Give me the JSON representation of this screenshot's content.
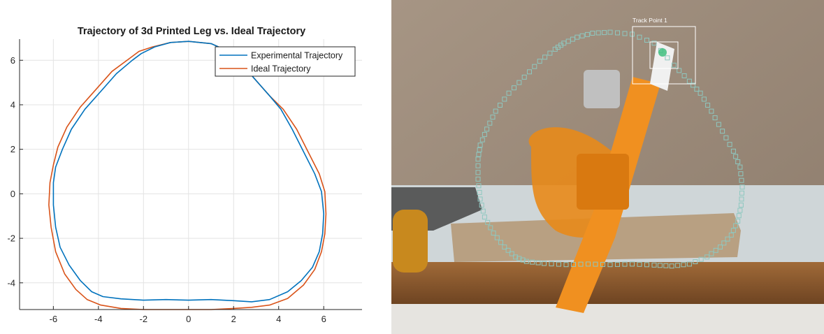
{
  "chart_data": {
    "type": "line",
    "title": "Trajectory of 3d Printed Leg vs. Ideal Trajectory",
    "xlabel": "",
    "ylabel": "",
    "xlim": [
      -7.5,
      7.7
    ],
    "ylim": [
      -5.2,
      6.95
    ],
    "xticks": [
      -6,
      -4,
      -2,
      0,
      2,
      4,
      6
    ],
    "yticks": [
      -4,
      -2,
      0,
      2,
      4,
      6
    ],
    "grid": true,
    "legend_position": "top-right",
    "series": [
      {
        "name": "Experimental Trajectory",
        "color": "#0072BD",
        "x": [
          0.0,
          1.0,
          2.0,
          2.9,
          3.6,
          4.1,
          4.6,
          5.1,
          5.6,
          5.9,
          6.0,
          5.95,
          5.8,
          5.5,
          5.0,
          4.4,
          3.6,
          2.8,
          2.0,
          1.0,
          0.0,
          -1.0,
          -2.0,
          -3.0,
          -3.8,
          -4.3,
          -4.8,
          -5.3,
          -5.7,
          -5.9,
          -6.0,
          -6.0,
          -5.9,
          -5.6,
          -5.2,
          -4.6,
          -3.9,
          -3.2,
          -2.5,
          -2.1,
          -1.5,
          -0.8,
          0.0
        ],
        "y": [
          6.85,
          6.75,
          6.3,
          5.2,
          4.4,
          3.8,
          2.9,
          1.9,
          0.9,
          0.1,
          -0.9,
          -1.8,
          -2.6,
          -3.3,
          -3.9,
          -4.4,
          -4.75,
          -4.85,
          -4.8,
          -4.75,
          -4.78,
          -4.75,
          -4.78,
          -4.72,
          -4.62,
          -4.4,
          -3.9,
          -3.2,
          -2.4,
          -1.5,
          -0.5,
          0.5,
          1.2,
          2.0,
          2.9,
          3.8,
          4.6,
          5.4,
          6.0,
          6.3,
          6.6,
          6.8,
          6.85
        ]
      },
      {
        "name": "Ideal Trajectory",
        "color": "#D95319",
        "x": [
          0.0,
          1.0,
          2.0,
          2.9,
          3.6,
          4.2,
          4.8,
          5.3,
          5.8,
          6.05,
          6.1,
          6.05,
          5.9,
          5.6,
          5.1,
          4.4,
          3.6,
          2.8,
          2.0,
          1.0,
          0.0,
          -1.0,
          -2.0,
          -3.0,
          -3.9,
          -4.5,
          -5.0,
          -5.5,
          -5.9,
          -6.1,
          -6.2,
          -6.15,
          -6.0,
          -5.8,
          -5.4,
          -4.8,
          -4.1,
          -3.4,
          -2.6,
          -2.2,
          -1.6,
          -0.8,
          0.0
        ],
        "y": [
          6.85,
          6.75,
          6.3,
          5.2,
          4.4,
          3.8,
          2.9,
          1.9,
          0.9,
          0.1,
          -0.9,
          -1.8,
          -2.6,
          -3.4,
          -4.1,
          -4.7,
          -5.0,
          -5.1,
          -5.15,
          -5.2,
          -5.2,
          -5.2,
          -5.2,
          -5.15,
          -5.0,
          -4.75,
          -4.3,
          -3.6,
          -2.6,
          -1.5,
          -0.5,
          0.5,
          1.3,
          2.1,
          3.0,
          3.9,
          4.7,
          5.5,
          6.1,
          6.4,
          6.6,
          6.8,
          6.85
        ]
      }
    ]
  },
  "photo": {
    "track_label": "Track Point 1",
    "colors": {
      "wall": "#a18f7e",
      "shelf": "#8a5a2e",
      "leg": "#e88a1a",
      "marker": "#8ec8c0"
    }
  }
}
